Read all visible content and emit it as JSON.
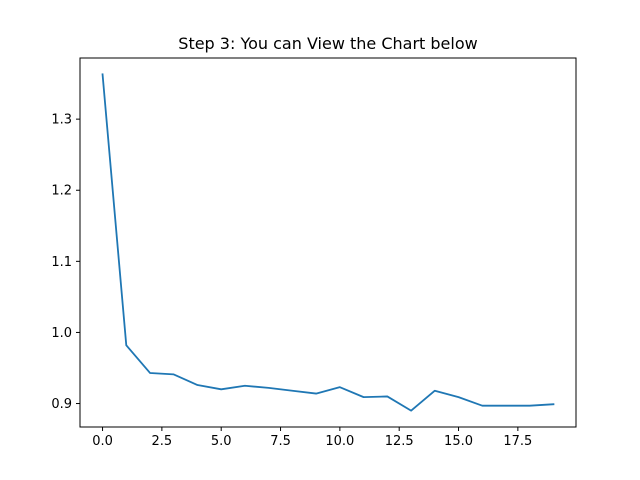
{
  "chart_data": {
    "type": "line",
    "title": "Step 3: You can View the Chart below",
    "xlabel": "",
    "ylabel": "",
    "x": [
      0,
      1,
      2,
      3,
      4,
      5,
      6,
      7,
      8,
      9,
      10,
      11,
      12,
      13,
      14,
      15,
      16,
      17,
      18,
      19
    ],
    "series": [
      {
        "values": [
          1.363,
          0.982,
          0.943,
          0.941,
          0.926,
          0.92,
          0.925,
          0.922,
          0.918,
          0.914,
          0.923,
          0.909,
          0.91,
          0.89,
          0.918,
          0.909,
          0.897,
          0.897,
          0.897,
          0.899
        ],
        "color": "#1f77b4"
      }
    ],
    "xlim": [
      -0.95,
      19.95
    ],
    "ylim": [
      0.867,
      1.386
    ],
    "xticks": [
      0.0,
      2.5,
      5.0,
      7.5,
      10.0,
      12.5,
      15.0,
      17.5
    ],
    "xtick_labels": [
      "0.0",
      "2.5",
      "5.0",
      "7.5",
      "10.0",
      "12.5",
      "15.0",
      "17.5"
    ],
    "yticks": [
      0.9,
      1.0,
      1.1,
      1.2,
      1.3
    ],
    "ytick_labels": [
      "0.9",
      "1.0",
      "1.1",
      "1.2",
      "1.3"
    ],
    "grid": false,
    "legend": "none"
  }
}
